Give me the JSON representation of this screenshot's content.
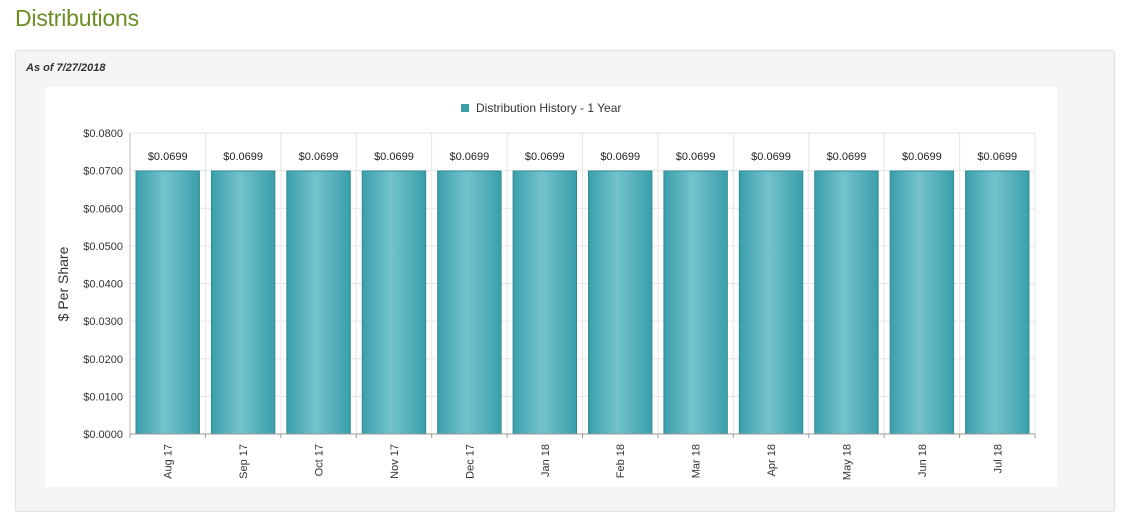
{
  "page": {
    "title": "Distributions",
    "as_of": "As of 7/27/2018"
  },
  "colors": {
    "title": "#6b8e23",
    "bar_edge": "#3a9fab",
    "bar_mid": "#74c3cc",
    "bar_stroke": "#2f8c97"
  },
  "chart_data": {
    "type": "bar",
    "legend": {
      "label": "Distribution History - 1 Year",
      "placement": "top-center"
    },
    "ylabel": "$ Per Share",
    "xlabel": "",
    "categories": [
      "Aug 17",
      "Sep 17",
      "Oct 17",
      "Nov 17",
      "Dec 17",
      "Jan 18",
      "Feb 18",
      "Mar 18",
      "Apr 18",
      "May 18",
      "Jun 18",
      "Jul 18"
    ],
    "values": [
      0.0699,
      0.0699,
      0.0699,
      0.0699,
      0.0699,
      0.0699,
      0.0699,
      0.0699,
      0.0699,
      0.0699,
      0.0699,
      0.0699
    ],
    "data_labels": [
      "$0.0699",
      "$0.0699",
      "$0.0699",
      "$0.0699",
      "$0.0699",
      "$0.0699",
      "$0.0699",
      "$0.0699",
      "$0.0699",
      "$0.0699",
      "$0.0699",
      "$0.0699"
    ],
    "ylim": [
      0,
      0.08
    ],
    "yticks": [
      0,
      0.01,
      0.02,
      0.03,
      0.04,
      0.05,
      0.06,
      0.07,
      0.08
    ],
    "ytick_labels": [
      "$0.0000",
      "$0.0100",
      "$0.0200",
      "$0.0300",
      "$0.0400",
      "$0.0500",
      "$0.0600",
      "$0.0700",
      "$0.0800"
    ],
    "grid": true
  }
}
